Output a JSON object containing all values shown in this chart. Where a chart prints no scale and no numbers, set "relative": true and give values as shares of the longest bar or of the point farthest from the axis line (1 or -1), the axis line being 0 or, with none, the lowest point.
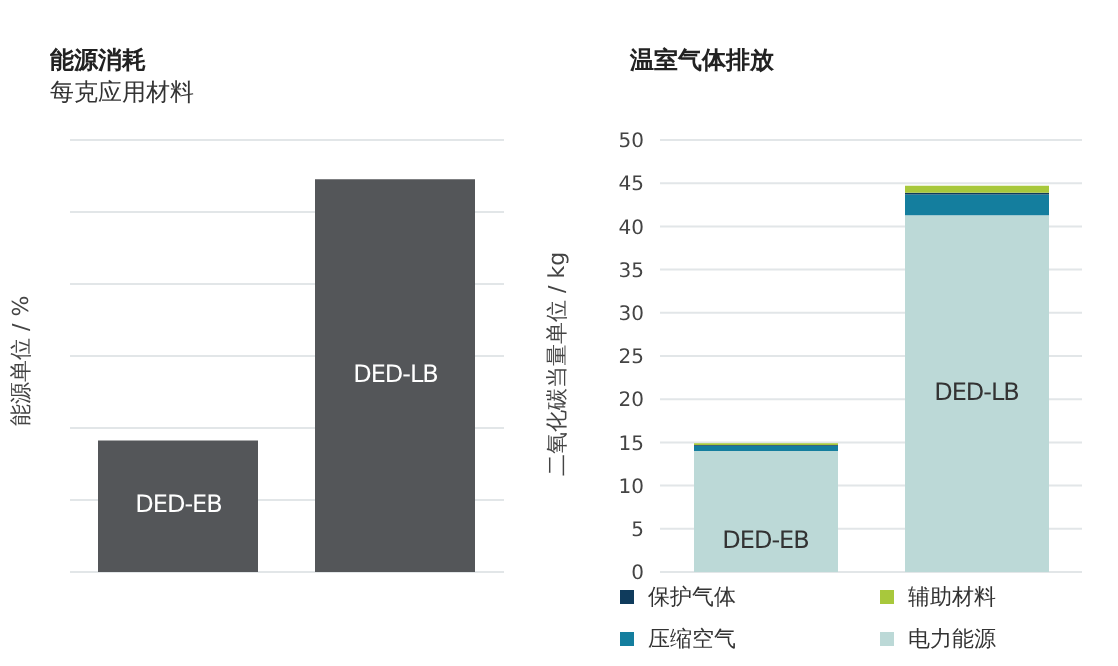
{
  "chart_data": [
    {
      "type": "bar",
      "title": "能源消耗",
      "subtitle": "每克应用材料",
      "ylabel": "能源单位 / %",
      "categories": [
        "DED-EB",
        "DED-LB"
      ],
      "values": [
        0.335,
        1
      ],
      "color": "#545659",
      "relative": true,
      "grid": "y",
      "legend": false
    },
    {
      "type": "bar",
      "title": "温室气体排放",
      "ylabel": "二氧化碳当量单位 / kg",
      "categories": [
        "DED-EB",
        "DED-LB"
      ],
      "stacked": true,
      "series": [
        {
          "name": "电力能源",
          "color": "#bcd9d7",
          "values": [
            14.0,
            41.3
          ]
        },
        {
          "name": "压缩空气",
          "color": "#147e9e",
          "values": [
            0.6,
            2.4
          ]
        },
        {
          "name": "保护气体",
          "color": "#0f3b5c",
          "values": [
            0.1,
            0.2
          ]
        },
        {
          "name": "辅助材料",
          "color": "#a8c83c",
          "values": [
            0.2,
            0.8
          ]
        }
      ],
      "ylim": [
        0,
        50
      ],
      "yticks": [
        0,
        5,
        10,
        15,
        20,
        25,
        30,
        35,
        40,
        45,
        50
      ],
      "grid": "y",
      "legend": "bottom"
    }
  ]
}
